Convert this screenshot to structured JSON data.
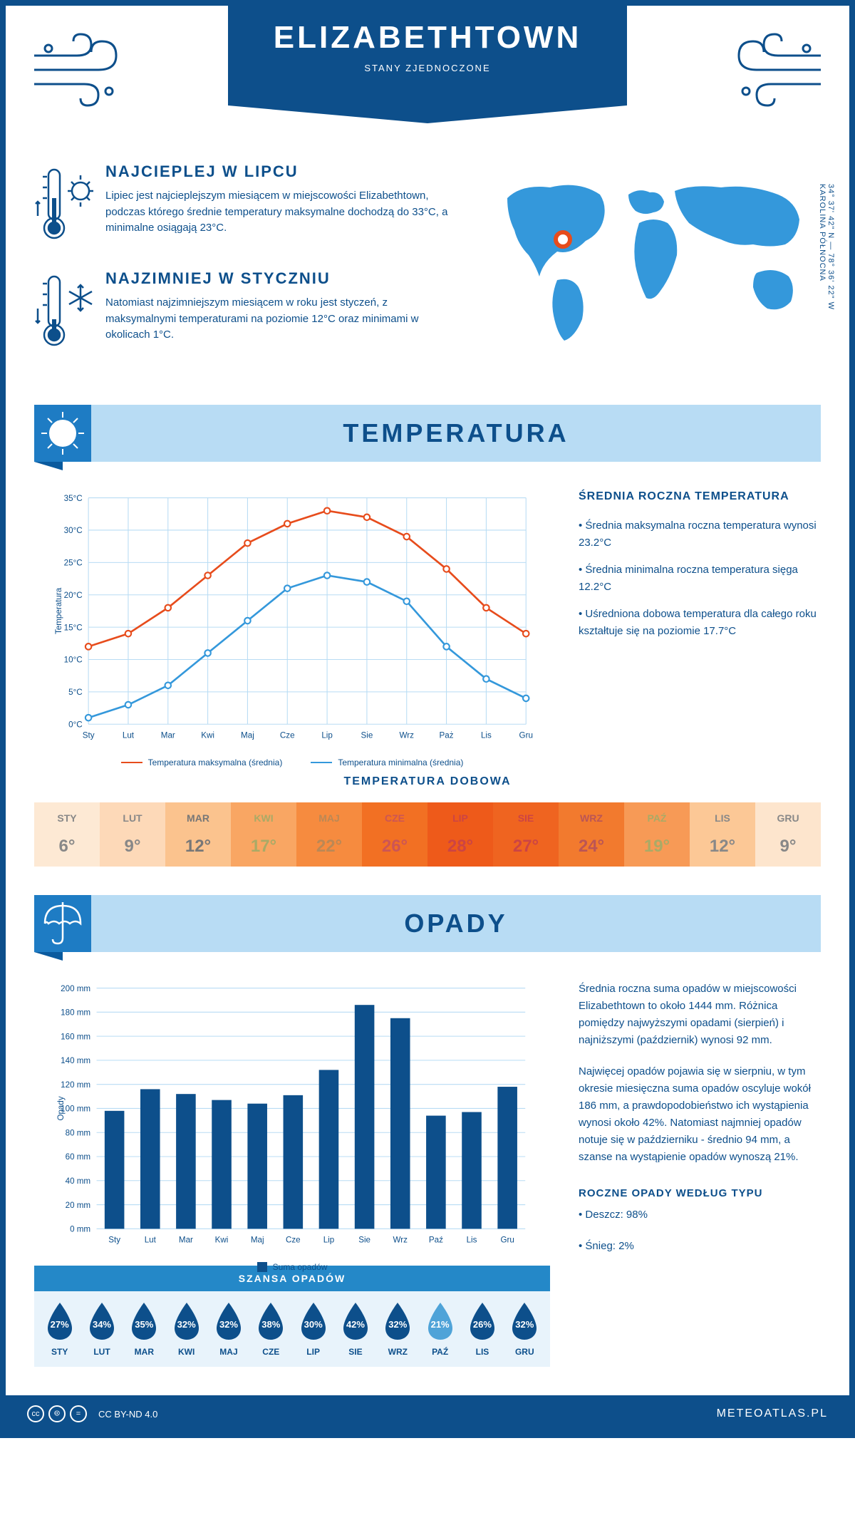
{
  "header": {
    "city": "ELIZABETHTOWN",
    "country": "STANY ZJEDNOCZONE",
    "coords": "34° 37' 42\" N — 78° 36' 22\" W",
    "region": "KAROLINA PÓŁNOCNA"
  },
  "intro": {
    "hot": {
      "title": "NAJCIEPLEJ W LIPCU",
      "text": "Lipiec jest najcieplejszym miesiącem w miejscowości Elizabethtown, podczas którego średnie temperatury maksymalne dochodzą do 33°C, a minimalne osiągają 23°C."
    },
    "cold": {
      "title": "NAJZIMNIEJ W STYCZNIU",
      "text": "Natomiast najzimniejszym miesiącem w roku jest styczeń, z maksymalnymi temperaturami na poziomie 12°C oraz minimami w okolicach 1°C."
    }
  },
  "temp_section": {
    "title": "TEMPERATURA",
    "info_title": "ŚREDNIA ROCZNA TEMPERATURA",
    "bullets": [
      "• Średnia maksymalna roczna temperatura wynosi 23.2°C",
      "• Średnia minimalna roczna temperatura sięga 12.2°C",
      "• Uśredniona dobowa temperatura dla całego roku kształtuje się na poziomie 17.7°C"
    ],
    "chart": {
      "months": [
        "Sty",
        "Lut",
        "Mar",
        "Kwi",
        "Maj",
        "Cze",
        "Lip",
        "Sie",
        "Wrz",
        "Paż",
        "Lis",
        "Gru"
      ],
      "max_values": [
        12,
        14,
        18,
        23,
        28,
        31,
        33,
        32,
        29,
        24,
        18,
        14
      ],
      "min_values": [
        1,
        3,
        6,
        11,
        16,
        21,
        23,
        22,
        19,
        12,
        7,
        4
      ],
      "max_color": "#e74c1c",
      "min_color": "#3498db",
      "ylim": [
        0,
        35
      ],
      "ytick_step": 5,
      "ylabel": "Temperatura",
      "legend_max": "Temperatura maksymalna (średnia)",
      "legend_min": "Temperatura minimalna (średnia)"
    },
    "daily": {
      "title": "TEMPERATURA DOBOWA",
      "months": [
        "STY",
        "LUT",
        "MAR",
        "KWI",
        "MAJ",
        "CZE",
        "LIP",
        "SIE",
        "WRZ",
        "PAŹ",
        "LIS",
        "GRU"
      ],
      "temps": [
        "6°",
        "9°",
        "12°",
        "17°",
        "22°",
        "26°",
        "28°",
        "27°",
        "24°",
        "19°",
        "12°",
        "9°"
      ],
      "colors": [
        "#fde9d4",
        "#fdd9b8",
        "#fbc38e",
        "#f9a663",
        "#f68b3f",
        "#f27023",
        "#ee5a1a",
        "#ef6420",
        "#f27a2e",
        "#f79a56",
        "#fcc896",
        "#fde5cd"
      ],
      "text_colors": [
        "#888",
        "#888",
        "#777",
        "#aa6",
        "#b85",
        "#c55",
        "#c44",
        "#c44",
        "#b55",
        "#aa6",
        "#888",
        "#888"
      ]
    }
  },
  "rain_section": {
    "title": "OPADY",
    "text1": "Średnia roczna suma opadów w miejscowości Elizabethtown to około 1444 mm. Różnica pomiędzy najwyższymi opadami (sierpień) i najniższymi (październik) wynosi 92 mm.",
    "text2": "Najwięcej opadów pojawia się w sierpniu, w tym okresie miesięczna suma opadów oscyluje wokół 186 mm, a prawdopodobieństwo ich wystąpienia wynosi około 42%. Natomiast najmniej opadów notuje się w październiku - średnio 94 mm, a szanse na wystąpienie opadów wynoszą 21%.",
    "type_title": "ROCZNE OPADY WEDŁUG TYPU",
    "type_rain": "• Deszcz: 98%",
    "type_snow": "• Śnieg: 2%",
    "chart": {
      "months": [
        "Sty",
        "Lut",
        "Mar",
        "Kwi",
        "Maj",
        "Cze",
        "Lip",
        "Sie",
        "Wrz",
        "Paź",
        "Lis",
        "Gru"
      ],
      "values": [
        98,
        116,
        112,
        107,
        104,
        111,
        132,
        186,
        175,
        94,
        97,
        118
      ],
      "ylim": [
        0,
        200
      ],
      "ytick_step": 20,
      "ylabel": "Opady",
      "bar_color": "#0d4f8b",
      "legend": "Suma opadów"
    },
    "chance": {
      "title": "SZANSA OPADÓW",
      "months": [
        "STY",
        "LUT",
        "MAR",
        "KWI",
        "MAJ",
        "CZE",
        "LIP",
        "SIE",
        "WRZ",
        "PAŹ",
        "LIS",
        "GRU"
      ],
      "values": [
        "27%",
        "34%",
        "35%",
        "32%",
        "32%",
        "38%",
        "30%",
        "42%",
        "32%",
        "21%",
        "26%",
        "32%"
      ],
      "colors": [
        "#0d4f8b",
        "#0d4f8b",
        "#0d4f8b",
        "#0d4f8b",
        "#0d4f8b",
        "#0d4f8b",
        "#0d4f8b",
        "#0d4f8b",
        "#0d4f8b",
        "#4fa3d8",
        "#0d4f8b",
        "#0d4f8b"
      ]
    }
  },
  "footer": {
    "license": "CC BY-ND 4.0",
    "site": "METEOATLAS.PL"
  }
}
